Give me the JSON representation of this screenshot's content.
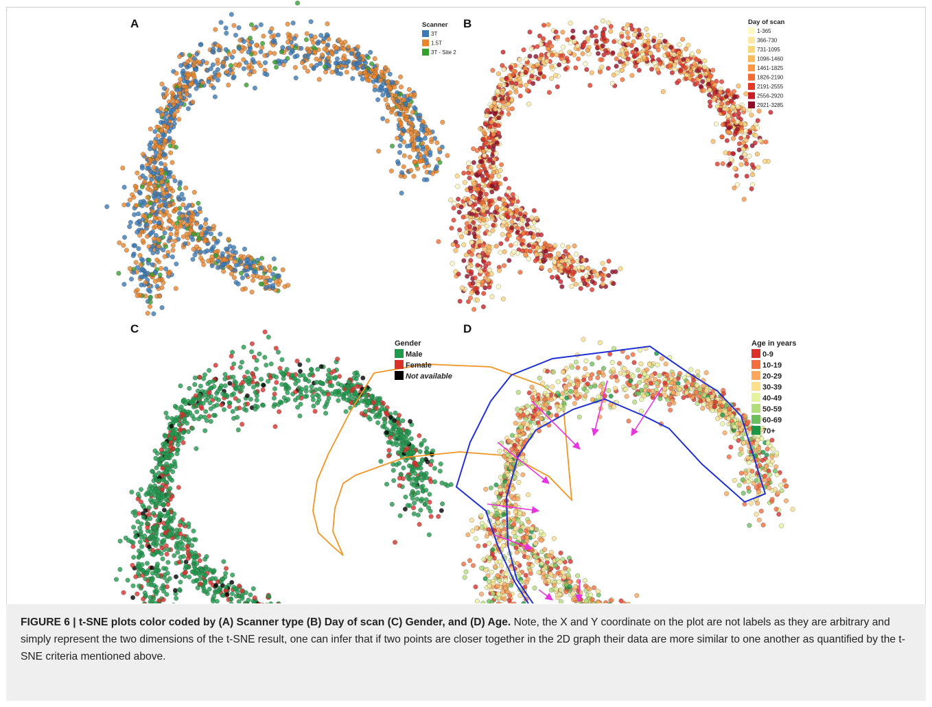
{
  "figure": {
    "caption_heading": "FIGURE 6 | t-SNE plots color coded by (A) Scanner type (B) Day of scan (C) Gender, and (D) Age.",
    "caption_body": " Note, the X and Y coordinate on the plot are not labels as they are arbitrary and simply represent the two dimensions of the t-SNE result, one can infer that if two points are closer together in the 2D graph their data are more similar to one another as quantified by the t-SNE criteria mentioned above."
  },
  "chart_data": [
    {
      "panel": "A",
      "type": "scatter",
      "title": "",
      "xlabel": "",
      "ylabel": "",
      "grid": false,
      "legend_placement": "top-right",
      "legend_title": "Scanner",
      "legend": [
        {
          "label": "3T",
          "color": "#3a7ab8"
        },
        {
          "label": "1.5T",
          "color": "#e8852a"
        },
        {
          "label": "3T - Site 2",
          "color": "#34a02c"
        }
      ],
      "note": "",
      "series": [
        {
          "name": "3T",
          "color": "#3a7ab8",
          "share": 0.42
        },
        {
          "name": "1.5T",
          "color": "#e8852a",
          "share": 0.5
        },
        {
          "name": "3T - Site 2",
          "color": "#34a02c",
          "share": 0.08
        }
      ]
    },
    {
      "panel": "B",
      "type": "scatter",
      "title": "",
      "xlabel": "",
      "ylabel": "",
      "grid": false,
      "legend_placement": "top-right",
      "legend_title": "Day of scan",
      "legend": [
        {
          "label": "1-365",
          "color": "#fff7c4"
        },
        {
          "label": "366-730",
          "color": "#fde9a4"
        },
        {
          "label": "731-1095",
          "color": "#fdd67a"
        },
        {
          "label": "1096-1460",
          "color": "#fdba5c"
        },
        {
          "label": "1461-1825",
          "color": "#fc9744"
        },
        {
          "label": "1826-2190",
          "color": "#f76a33"
        },
        {
          "label": "2191-2555",
          "color": "#e33a25"
        },
        {
          "label": "2556-2920",
          "color": "#c81f26"
        },
        {
          "label": "2921-3285",
          "color": "#8f0d28"
        }
      ],
      "series": [
        {
          "name": "1-365",
          "color": "#fff7c4",
          "share": 0.08
        },
        {
          "name": "366-730",
          "color": "#fde9a4",
          "share": 0.1
        },
        {
          "name": "731-1095",
          "color": "#fdd67a",
          "share": 0.1
        },
        {
          "name": "1096-1460",
          "color": "#fdba5c",
          "share": 0.1
        },
        {
          "name": "1461-1825",
          "color": "#fc9744",
          "share": 0.1
        },
        {
          "name": "1826-2190",
          "color": "#f76a33",
          "share": 0.11
        },
        {
          "name": "2191-2555",
          "color": "#e33a25",
          "share": 0.14
        },
        {
          "name": "2556-2920",
          "color": "#c81f26",
          "share": 0.15
        },
        {
          "name": "2921-3285",
          "color": "#8f0d28",
          "share": 0.12
        }
      ]
    },
    {
      "panel": "C",
      "type": "scatter",
      "title": "",
      "xlabel": "",
      "ylabel": "",
      "grid": false,
      "legend_placement": "top-right",
      "legend_title": "Gender",
      "legend": [
        {
          "label": "Male",
          "color": "#1f9a4c"
        },
        {
          "label": "Female",
          "color": "#d8312a"
        },
        {
          "label": "Not available",
          "color": "#000000"
        }
      ],
      "series": [
        {
          "name": "Male",
          "color": "#1f9a4c",
          "share": 0.78
        },
        {
          "name": "Female",
          "color": "#d8312a",
          "share": 0.18
        },
        {
          "name": "Not available",
          "color": "#000000",
          "share": 0.04
        }
      ]
    },
    {
      "panel": "D",
      "type": "scatter",
      "title": "",
      "xlabel": "",
      "ylabel": "",
      "grid": false,
      "legend_placement": "top-right",
      "legend_title": "Age in years",
      "legend": [
        {
          "label": "0-9",
          "color": "#d8322a"
        },
        {
          "label": "10-19",
          "color": "#f26e3f"
        },
        {
          "label": "20-29",
          "color": "#fca75c"
        },
        {
          "label": "30-39",
          "color": "#fddf8c"
        },
        {
          "label": "40-49",
          "color": "#e7f29e"
        },
        {
          "label": "50-59",
          "color": "#b3dd79"
        },
        {
          "label": "60-69",
          "color": "#6dbf5e"
        },
        {
          "label": "70+",
          "color": "#1a9645"
        }
      ],
      "series": [
        {
          "name": "0-9",
          "color": "#d8322a",
          "share": 0.1
        },
        {
          "name": "10-19",
          "color": "#f26e3f",
          "share": 0.16
        },
        {
          "name": "20-29",
          "color": "#fca75c",
          "share": 0.2
        },
        {
          "name": "30-39",
          "color": "#fddf8c",
          "share": 0.18
        },
        {
          "name": "40-49",
          "color": "#e7f29e",
          "share": 0.14
        },
        {
          "name": "50-59",
          "color": "#b3dd79",
          "share": 0.12
        },
        {
          "name": "60-69",
          "color": "#6dbf5e",
          "share": 0.07
        },
        {
          "name": "70+",
          "color": "#1a9645",
          "share": 0.03
        }
      ]
    }
  ],
  "colors": {
    "outline_orange": "#f29420",
    "outline_blue": "#1f2fd6",
    "arrow_magenta": "#e833e0",
    "caption_bg": "#efefef"
  }
}
